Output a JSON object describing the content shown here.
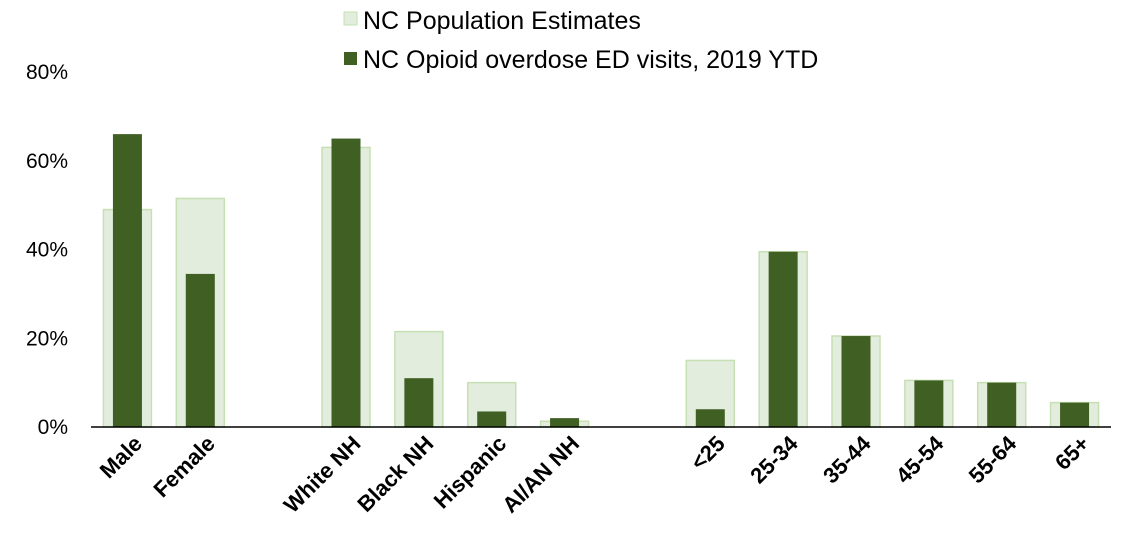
{
  "chart_data": {
    "type": "bar",
    "title": "",
    "xlabel": "",
    "ylabel": "",
    "ylim": [
      0,
      80
    ],
    "y_ticks": [
      "0%",
      "20%",
      "40%",
      "60%",
      "80%"
    ],
    "y_tick_values": [
      0,
      20,
      40,
      60,
      80
    ],
    "grid": false,
    "legend_position": "top-center",
    "categories": [
      "Male",
      "Female",
      "",
      "White NH",
      "Black NH",
      "Hispanic",
      "AI/AN NH",
      "",
      "<25",
      "25-34",
      "35-44",
      "45-54",
      "55-64",
      "65+"
    ],
    "series": [
      {
        "name": "NC Population Estimates",
        "color": "#e3eddd",
        "stroke": "#c6e0b4",
        "values": [
          49,
          51.5,
          null,
          63,
          21.5,
          10,
          1.3,
          null,
          15,
          39.5,
          20.5,
          10.5,
          10,
          5.5
        ]
      },
      {
        "name": "NC Opioid overdose ED visits, 2019 YTD",
        "color": "#3f5f23",
        "values": [
          66,
          34.5,
          null,
          65,
          11,
          3.5,
          2,
          null,
          4,
          39.5,
          20.5,
          10.5,
          10,
          5.5
        ]
      }
    ]
  }
}
